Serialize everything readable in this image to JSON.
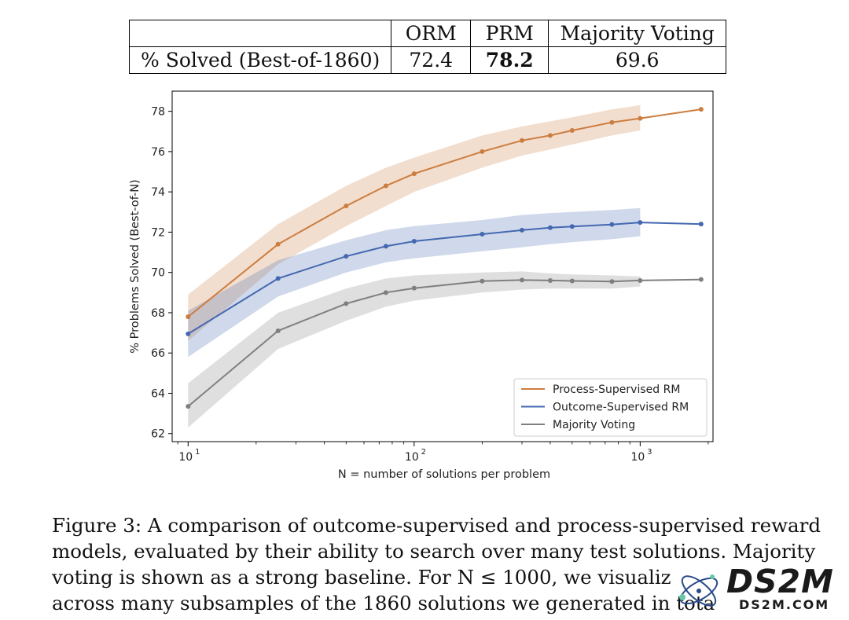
{
  "table": {
    "headers": [
      "ORM",
      "PRM",
      "Majority Voting"
    ],
    "row_label": "% Solved (Best-of-1860)",
    "values": [
      "72.4",
      "78.2",
      "69.6"
    ]
  },
  "chart_data": {
    "type": "line",
    "x_scale": "log",
    "xlabel": "N = number of solutions per problem",
    "ylabel": "% Problems Solved (Best-of-N)",
    "ylim": [
      61.6,
      79.0
    ],
    "xlim": [
      8.5,
      2100
    ],
    "y_ticks": [
      "62",
      "64",
      "66",
      "68",
      "70",
      "72",
      "74",
      "76",
      "78"
    ],
    "x_tick_labels": [
      {
        "base": "10",
        "exp": "1",
        "value": 10
      },
      {
        "base": "10",
        "exp": "2",
        "value": 100
      },
      {
        "base": "10",
        "exp": "3",
        "value": 1000
      }
    ],
    "legend_position": "lower-right",
    "series": [
      {
        "name": "Process-Supervised RM",
        "color": "#cc7d3f",
        "x": [
          10,
          25,
          50,
          75,
          100,
          200,
          300,
          400,
          500,
          750,
          1000,
          1860
        ],
        "y": [
          67.8,
          71.4,
          73.3,
          74.3,
          74.9,
          76.0,
          76.55,
          76.8,
          77.05,
          77.45,
          77.65,
          78.1
        ],
        "band_low": [
          66.6,
          70.4,
          72.3,
          73.3,
          74.0,
          75.2,
          75.8,
          76.1,
          76.35,
          76.8,
          77.05,
          null
        ],
        "band_high": [
          68.9,
          72.4,
          74.3,
          75.2,
          75.7,
          76.8,
          77.25,
          77.5,
          77.7,
          78.1,
          78.3,
          null
        ]
      },
      {
        "name": "Outcome-Supervised RM",
        "color": "#4468b0",
        "x": [
          10,
          25,
          50,
          75,
          100,
          200,
          300,
          400,
          500,
          750,
          1000,
          1860
        ],
        "y": [
          66.95,
          69.7,
          70.8,
          71.3,
          71.55,
          71.9,
          72.1,
          72.22,
          72.28,
          72.38,
          72.48,
          72.4
        ],
        "band_low": [
          65.8,
          68.8,
          70.0,
          70.5,
          70.7,
          71.05,
          71.25,
          71.4,
          71.5,
          71.65,
          71.8,
          null
        ],
        "band_high": [
          68.1,
          70.6,
          71.6,
          72.1,
          72.3,
          72.6,
          72.85,
          72.95,
          73.0,
          73.1,
          73.2,
          null
        ]
      },
      {
        "name": "Majority Voting",
        "color": "#7f7f7f",
        "x": [
          10,
          25,
          50,
          75,
          100,
          200,
          300,
          400,
          500,
          750,
          1000,
          1860
        ],
        "y": [
          63.35,
          67.1,
          68.45,
          69.0,
          69.22,
          69.57,
          69.62,
          69.6,
          69.58,
          69.55,
          69.6,
          69.65
        ],
        "band_low": [
          62.3,
          66.2,
          67.6,
          68.3,
          68.6,
          69.0,
          69.15,
          69.2,
          69.2,
          69.2,
          69.3,
          null
        ],
        "band_high": [
          64.5,
          68.0,
          69.2,
          69.7,
          69.85,
          70.0,
          70.05,
          69.95,
          69.9,
          69.85,
          69.8,
          null
        ]
      }
    ]
  },
  "caption": {
    "lines": [
      "Figure 3: A comparison of outcome-supervised and process-supervised reward",
      "models, evaluated by their ability to search over many test solutions. Majority",
      "voting is shown as a strong baseline. For N ≤ 1000, we visualiz",
      "across many subsamples of the 1860 solutions we generated in tota"
    ]
  },
  "watermark": {
    "logo_text": "DS2M",
    "url_text": "DS2M.COM"
  }
}
